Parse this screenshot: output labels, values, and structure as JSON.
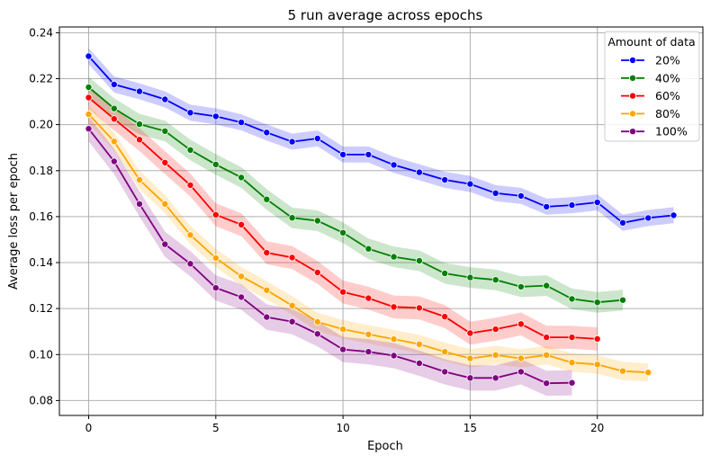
{
  "chart_data": {
    "type": "line",
    "title": "5 run average across epochs",
    "xlabel": "Epoch",
    "ylabel": "Average loss per epoch",
    "xlim": [
      -1.15,
      24.15
    ],
    "ylim": [
      0.0735,
      0.2425
    ],
    "xticks": [
      0,
      5,
      10,
      15,
      20
    ],
    "xtick_labels": [
      "0",
      "5",
      "10",
      "15",
      "20"
    ],
    "yticks": [
      0.08,
      0.1,
      0.12,
      0.14,
      0.16,
      0.18,
      0.2,
      0.22,
      0.24
    ],
    "ytick_labels": [
      "0.08",
      "0.10",
      "0.12",
      "0.14",
      "0.16",
      "0.18",
      "0.20",
      "0.22",
      "0.24"
    ],
    "grid": true,
    "legend": {
      "title": "Amount of data",
      "position": "top-right"
    },
    "series": [
      {
        "name": "20%",
        "color": "#0000ff",
        "x": [
          0,
          1,
          2,
          3,
          4,
          5,
          6,
          7,
          8,
          9,
          10,
          11,
          12,
          13,
          14,
          15,
          16,
          17,
          18,
          19,
          20,
          21,
          22,
          23
        ],
        "y": [
          0.2298,
          0.2175,
          0.2145,
          0.211,
          0.2052,
          0.2036,
          0.201,
          0.1966,
          0.1926,
          0.194,
          0.187,
          0.187,
          0.1825,
          0.1793,
          0.176,
          0.1742,
          0.1702,
          0.169,
          0.1643,
          0.165,
          0.1662,
          0.1573,
          0.1594,
          0.1606
        ],
        "ci_half_width": 0.0035
      },
      {
        "name": "40%",
        "color": "#008000",
        "x": [
          0,
          1,
          2,
          3,
          4,
          5,
          6,
          7,
          8,
          9,
          10,
          11,
          12,
          13,
          14,
          15,
          16,
          17,
          18,
          19,
          20,
          21
        ],
        "y": [
          0.2163,
          0.207,
          0.2002,
          0.1972,
          0.189,
          0.1827,
          0.177,
          0.1675,
          0.1595,
          0.1582,
          0.153,
          0.146,
          0.1425,
          0.1408,
          0.1353,
          0.1335,
          0.1325,
          0.1295,
          0.13,
          0.1242,
          0.1227,
          0.1237
        ],
        "ci_half_width": 0.0045
      },
      {
        "name": "60%",
        "color": "#ff0000",
        "x": [
          0,
          1,
          2,
          3,
          4,
          5,
          6,
          7,
          8,
          9,
          10,
          11,
          12,
          13,
          14,
          15,
          16,
          17,
          18,
          19,
          20
        ],
        "y": [
          0.2118,
          0.2025,
          0.1935,
          0.1835,
          0.1737,
          0.1608,
          0.1565,
          0.1443,
          0.1422,
          0.1357,
          0.1272,
          0.1245,
          0.1207,
          0.1203,
          0.1165,
          0.1093,
          0.111,
          0.1133,
          0.1075,
          0.1075,
          0.1068
        ],
        "ci_half_width": 0.005
      },
      {
        "name": "80%",
        "color": "#ffa500",
        "x": [
          0,
          1,
          2,
          3,
          4,
          5,
          6,
          7,
          8,
          9,
          10,
          11,
          12,
          13,
          14,
          15,
          16,
          17,
          18,
          19,
          20,
          21,
          22
        ],
        "y": [
          0.2045,
          0.1927,
          0.176,
          0.1655,
          0.152,
          0.142,
          0.134,
          0.128,
          0.1213,
          0.1142,
          0.111,
          0.1088,
          0.1067,
          0.1045,
          0.1012,
          0.0983,
          0.0998,
          0.0983,
          0.0998,
          0.0965,
          0.0957,
          0.0928,
          0.0922
        ],
        "ci_half_width": 0.004
      },
      {
        "name": "100%",
        "color": "#800080",
        "x": [
          0,
          1,
          2,
          3,
          4,
          5,
          6,
          7,
          8,
          9,
          10,
          11,
          12,
          13,
          14,
          15,
          16,
          17,
          18,
          19
        ],
        "y": [
          0.1982,
          0.184,
          0.1655,
          0.148,
          0.1395,
          0.129,
          0.125,
          0.1163,
          0.1143,
          0.109,
          0.1022,
          0.1012,
          0.0995,
          0.0962,
          0.0925,
          0.0898,
          0.0898,
          0.0925,
          0.0875,
          0.0877
        ],
        "ci_half_width": 0.0055
      }
    ]
  }
}
